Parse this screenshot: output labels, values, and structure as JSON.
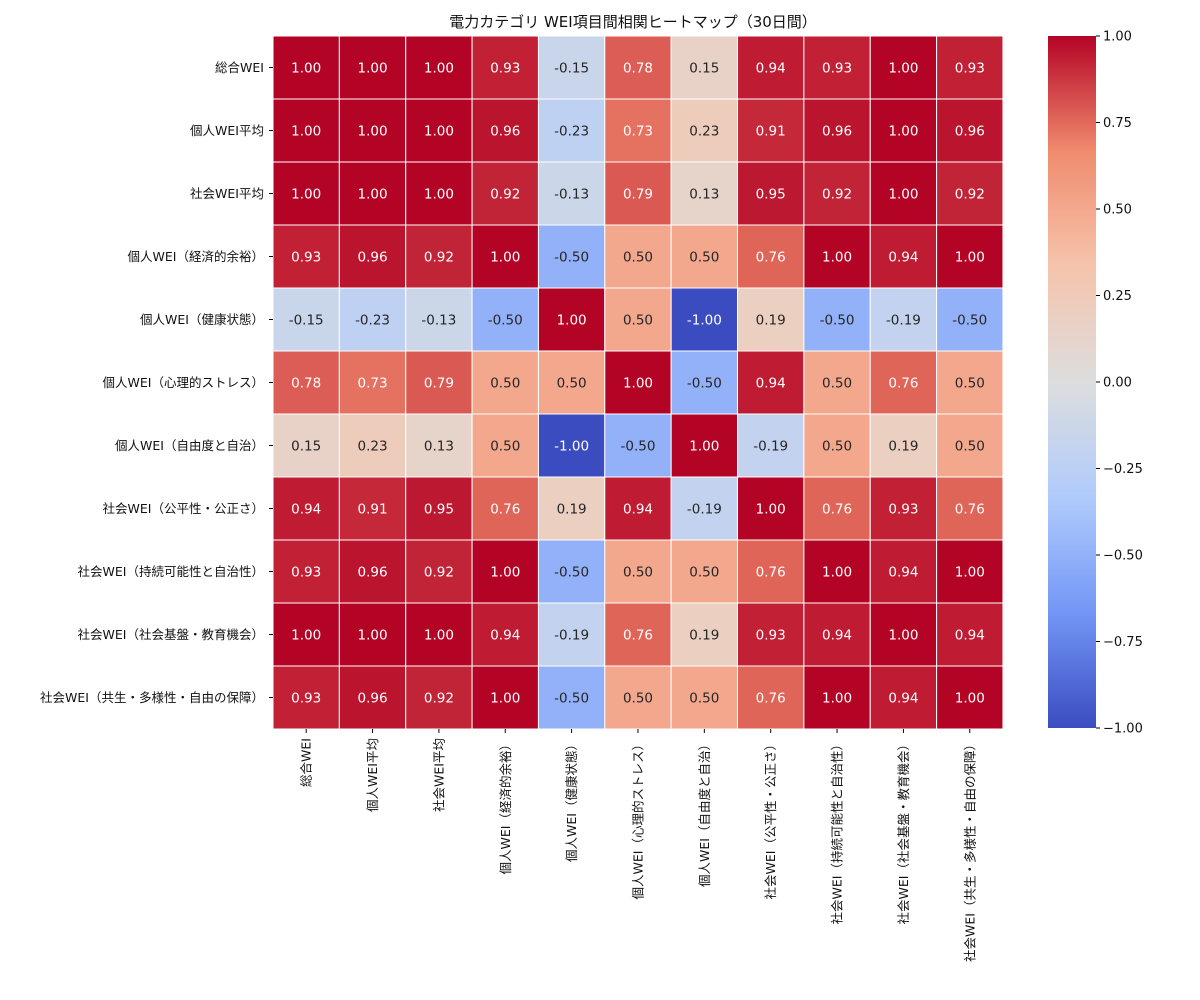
{
  "chart_data": {
    "type": "heatmap",
    "title": "電力カテゴリ WEI項目間相関ヒートマップ（30日間）",
    "row_labels": [
      "総合WEI",
      "個人WEI平均",
      "社会WEI平均",
      "個人WEI（経済的余裕）",
      "個人WEI（健康状態）",
      "個人WEI（心理的ストレス）",
      "個人WEI（自由度と自治）",
      "社会WEI（公平性・公正さ）",
      "社会WEI（持続可能性と自治性）",
      "社会WEI（社会基盤・教育機会）",
      "社会WEI（共生・多様性・自由の保障）"
    ],
    "col_labels": [
      "総合WEI",
      "個人WEI平均",
      "社会WEI平均",
      "個人WEI（経済的余裕）",
      "個人WEI（健康状態）",
      "個人WEI（心理的ストレス）",
      "個人WEI（自由度と自治）",
      "社会WEI（公平性・公正さ）",
      "社会WEI（持続可能性と自治性）",
      "社会WEI（社会基盤・教育機会）",
      "社会WEI（共生・多様性・自由の保障）"
    ],
    "values": [
      [
        1.0,
        1.0,
        1.0,
        0.93,
        -0.15,
        0.78,
        0.15,
        0.94,
        0.93,
        1.0,
        0.93
      ],
      [
        1.0,
        1.0,
        1.0,
        0.96,
        -0.23,
        0.73,
        0.23,
        0.91,
        0.96,
        1.0,
        0.96
      ],
      [
        1.0,
        1.0,
        1.0,
        0.92,
        -0.13,
        0.79,
        0.13,
        0.95,
        0.92,
        1.0,
        0.92
      ],
      [
        0.93,
        0.96,
        0.92,
        1.0,
        -0.5,
        0.5,
        0.5,
        0.76,
        1.0,
        0.94,
        1.0
      ],
      [
        -0.15,
        -0.23,
        -0.13,
        -0.5,
        1.0,
        0.5,
        -1.0,
        0.19,
        -0.5,
        -0.19,
        -0.5
      ],
      [
        0.78,
        0.73,
        0.79,
        0.5,
        0.5,
        1.0,
        -0.5,
        0.94,
        0.5,
        0.76,
        0.5
      ],
      [
        0.15,
        0.23,
        0.13,
        0.5,
        -1.0,
        -0.5,
        1.0,
        -0.19,
        0.5,
        0.19,
        0.5
      ],
      [
        0.94,
        0.91,
        0.95,
        0.76,
        0.19,
        0.94,
        -0.19,
        1.0,
        0.76,
        0.93,
        0.76
      ],
      [
        0.93,
        0.96,
        0.92,
        1.0,
        -0.5,
        0.5,
        0.5,
        0.76,
        1.0,
        0.94,
        1.0
      ],
      [
        1.0,
        1.0,
        1.0,
        0.94,
        -0.19,
        0.76,
        0.19,
        0.93,
        0.94,
        1.0,
        0.94
      ],
      [
        0.93,
        0.96,
        0.92,
        1.0,
        -0.5,
        0.5,
        0.5,
        0.76,
        1.0,
        0.94,
        1.0
      ]
    ],
    "value_format": "0.00",
    "colormap": "coolwarm",
    "colormap_stops": [
      "#3b4cc0",
      "#7396f5",
      "#b0cbfc",
      "#dddddd",
      "#f5c4ac",
      "#f08b6d",
      "#b40426"
    ],
    "vmin": -1,
    "vmax": 1,
    "colorbar_ticks": [
      1.0,
      0.75,
      0.5,
      0.25,
      0.0,
      -0.25,
      -0.5,
      -0.75,
      -1.0
    ],
    "colorbar_tick_labels": [
      "1.00",
      "0.75",
      "0.50",
      "0.25",
      "0.00",
      "−0.25",
      "−0.50",
      "−0.75",
      "−1.00"
    ],
    "annotation_colors": {
      "dark": "#262626",
      "light": "#ffffff"
    },
    "xlabel": "",
    "ylabel": ""
  }
}
